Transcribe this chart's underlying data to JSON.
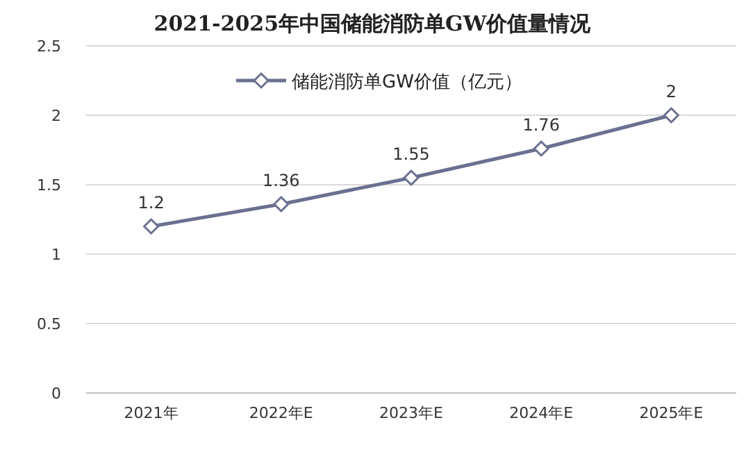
{
  "chart_data": {
    "type": "line",
    "title": "2021-2025年中国储能消防单GW价值量情况",
    "categories": [
      "2021年",
      "2022年E",
      "2023年E",
      "2024年E",
      "2025年E"
    ],
    "series": [
      {
        "name": "储能消防单GW价值（亿元）",
        "color": "#6a7090",
        "values": [
          1.2,
          1.36,
          1.55,
          1.76,
          2
        ]
      }
    ],
    "ylim": [
      0,
      2.5
    ],
    "yticks": [
      0,
      0.5,
      1,
      1.5,
      2,
      2.5
    ],
    "grid": "y",
    "legend": "top",
    "marker": "diamond",
    "line_style": "solid",
    "data_labels": true
  }
}
